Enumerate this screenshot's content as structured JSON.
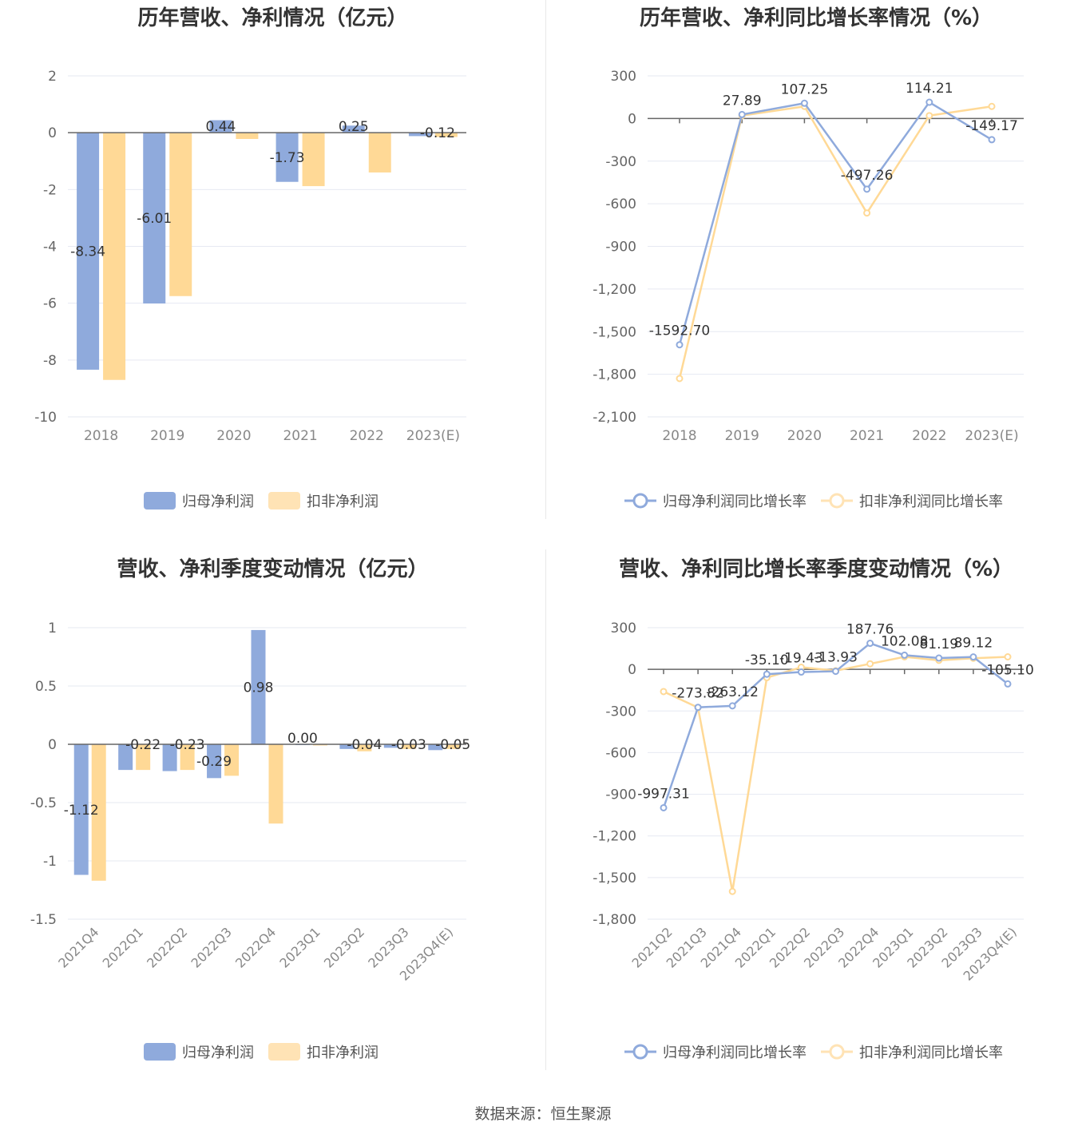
{
  "colors": {
    "blue": "#8FAADC",
    "orange": "#FFD996",
    "grid": "#E6E9F2",
    "axis": "#666666"
  },
  "source": "数据来源：恒生聚源",
  "legend_bar": [
    "归母净利润",
    "扣非净利润"
  ],
  "legend_line": [
    "归母净利润同比增长率",
    "扣非净利润同比增长率"
  ],
  "chart_data": [
    {
      "id": "c1",
      "type": "bar",
      "title": "历年营收、净利情况（亿元）",
      "categories": [
        "2018",
        "2019",
        "2020",
        "2021",
        "2022",
        "2023(E)"
      ],
      "yticks": [
        "2",
        "0",
        "-2",
        "-4",
        "-6",
        "-8",
        "-10"
      ],
      "ylim": [
        -10,
        2
      ],
      "series": [
        {
          "name": "归母净利润",
          "values": [
            -8.34,
            -6.01,
            0.44,
            -1.73,
            0.25,
            -0.12
          ],
          "labels": [
            "-8.34",
            "-6.01",
            "0.44",
            "-1.73",
            "0.25",
            "-0.12"
          ]
        },
        {
          "name": "扣非净利润",
          "values": [
            -8.7,
            -5.75,
            -0.22,
            -1.88,
            -1.4,
            -0.15
          ]
        }
      ]
    },
    {
      "id": "c2",
      "type": "line",
      "title": "历年营收、净利同比增长率情况（%）",
      "categories": [
        "2018",
        "2019",
        "2020",
        "2021",
        "2022",
        "2023(E)"
      ],
      "yticks": [
        "300",
        "0",
        "-300",
        "-600",
        "-900",
        "-1,200",
        "-1,500",
        "-1,800",
        "-2,100"
      ],
      "ylim": [
        -2100,
        300
      ],
      "series": [
        {
          "name": "归母净利润同比增长率",
          "values": [
            -1592.7,
            27.89,
            107.25,
            -497.26,
            114.21,
            -149.17
          ],
          "labels": [
            "-1592.70",
            "27.89",
            "107.25",
            "-497.26",
            "114.21",
            "-149.17"
          ]
        },
        {
          "name": "扣非净利润同比增长率",
          "values": [
            -1830,
            20,
            85,
            -665,
            20,
            85
          ]
        }
      ]
    },
    {
      "id": "c3",
      "type": "bar",
      "title": "营收、净利季度变动情况（亿元）",
      "categories": [
        "2021Q4",
        "2022Q1",
        "2022Q2",
        "2022Q3",
        "2022Q4",
        "2023Q1",
        "2023Q2",
        "2023Q3",
        "2023Q4(E)"
      ],
      "yticks": [
        "1",
        "0.5",
        "0",
        "-0.5",
        "-1",
        "-1.5"
      ],
      "ylim": [
        -1.5,
        1
      ],
      "series": [
        {
          "name": "归母净利润",
          "values": [
            -1.12,
            -0.22,
            -0.23,
            -0.29,
            0.98,
            0.0,
            -0.04,
            -0.03,
            -0.05
          ],
          "labels": [
            "-1.12",
            "-0.22",
            "-0.23",
            "-0.29",
            "0.98",
            "0.00",
            "-0.04",
            "-0.03",
            "-0.05"
          ]
        },
        {
          "name": "扣非净利润",
          "values": [
            -1.17,
            -0.22,
            -0.22,
            -0.27,
            -0.68,
            -0.01,
            -0.06,
            -0.04,
            -0.04
          ]
        }
      ]
    },
    {
      "id": "c4",
      "type": "line",
      "title": "营收、净利同比增长率季度变动情况（%）",
      "categories": [
        "2021Q2",
        "2021Q3",
        "2021Q4",
        "2022Q1",
        "2022Q2",
        "2022Q3",
        "2022Q4",
        "2023Q1",
        "2023Q2",
        "2023Q3",
        "2023Q4(E)"
      ],
      "yticks": [
        "300",
        "0",
        "-300",
        "-600",
        "-900",
        "-1,200",
        "-1,500",
        "-1,800"
      ],
      "ylim": [
        -1800,
        300
      ],
      "series": [
        {
          "name": "归母净利润同比增长率",
          "values": [
            -997.31,
            -273.82,
            -263.12,
            -35.1,
            -19.43,
            -13.93,
            187.76,
            102.08,
            81.19,
            89.12,
            -105.1
          ],
          "labels": [
            "-997.31",
            "-273.82",
            "-263.12",
            "-35.10",
            "-19.43",
            "-13.93",
            "187.76",
            "102.08",
            "81.19",
            "89.12",
            "-105.10"
          ]
        },
        {
          "name": "扣非净利润同比增长率",
          "values": [
            -160,
            -275,
            -1600,
            -60,
            15,
            -10,
            40,
            90,
            65,
            80,
            90
          ]
        }
      ]
    }
  ]
}
